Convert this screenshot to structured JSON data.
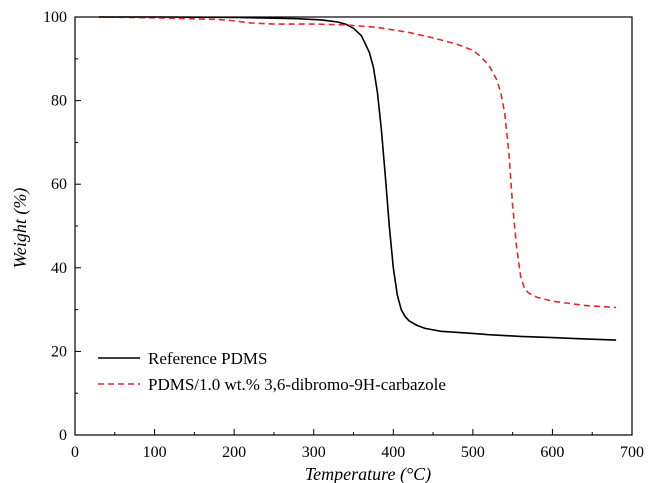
{
  "chart_data": {
    "type": "line",
    "title": "",
    "xlabel": "Temperature (°C)",
    "ylabel": "Weight (%)",
    "xlim": [
      0,
      700
    ],
    "ylim": [
      0,
      100
    ],
    "xticks": [
      0,
      100,
      200,
      300,
      400,
      500,
      600,
      700
    ],
    "yticks": [
      0,
      20,
      40,
      60,
      80,
      100
    ],
    "grid": false,
    "legend_position": "bottom-left",
    "series": [
      {
        "name": "Reference PDMS",
        "color": "#000000",
        "line_style": "solid",
        "x": [
          30,
          100,
          200,
          280,
          310,
          330,
          340,
          350,
          360,
          370,
          375,
          380,
          385,
          390,
          395,
          400,
          405,
          410,
          415,
          420,
          430,
          440,
          460,
          500,
          520,
          560,
          600,
          640,
          680
        ],
        "y": [
          100,
          100,
          99.9,
          99.6,
          99.3,
          98.8,
          98.3,
          97.3,
          95.5,
          91.5,
          88,
          82,
          73,
          62,
          50,
          40,
          33.5,
          30,
          28.3,
          27.3,
          26.2,
          25.5,
          24.8,
          24.3,
          24.0,
          23.6,
          23.3,
          23.0,
          22.7
        ]
      },
      {
        "name": "PDMS/1.0 wt.% 3,6-dibromo-9H-carbazole",
        "color": "#e8262a",
        "line_style": "dashed",
        "x": [
          30,
          100,
          180,
          200,
          220,
          250,
          300,
          340,
          380,
          420,
          450,
          480,
          500,
          510,
          520,
          530,
          535,
          540,
          545,
          550,
          555,
          560,
          565,
          570,
          580,
          600,
          640,
          680
        ],
        "y": [
          100,
          99.8,
          99.4,
          99.1,
          98.6,
          98.3,
          98.3,
          98.1,
          97.5,
          96.3,
          95,
          93.5,
          92,
          90.5,
          88.5,
          85,
          82,
          77,
          68,
          55,
          45,
          38,
          35,
          34,
          33,
          32,
          31,
          30.5
        ]
      }
    ]
  }
}
